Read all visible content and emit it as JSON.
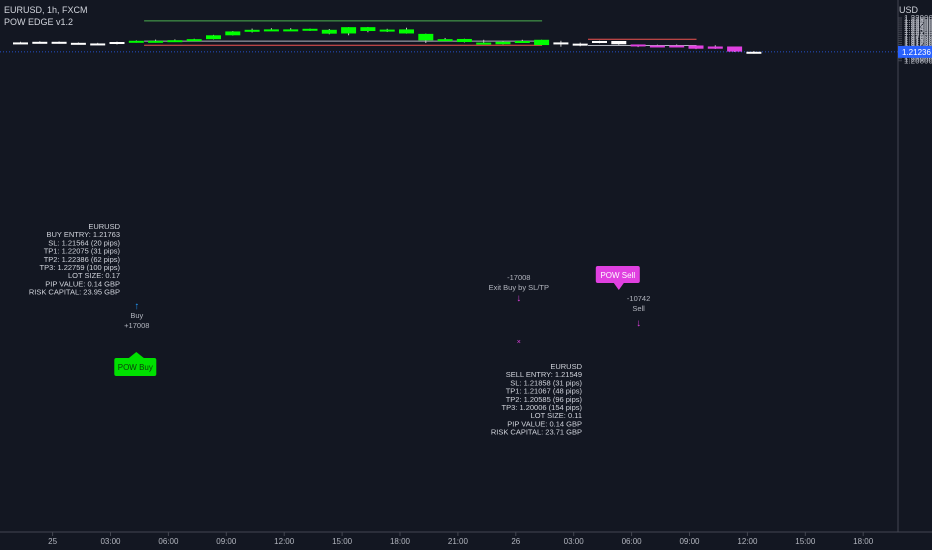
{
  "header": {
    "symbol_line": "EURUSD, 1h, FXCM",
    "indicator_name": "POW EDGE v1.2",
    "currency": "USD"
  },
  "colors": {
    "background": "#131722",
    "bull": "#00ff00",
    "bear_pre_sell": "#ffffff",
    "bear_post_sell": "#e040e0",
    "sell_zone_bull": "#ffffff",
    "target_line": "#4caf50",
    "stop_line": "#ef5350",
    "entry_line": "#b2b5be",
    "current_price": "#2962ff",
    "buy_label": "#00e000",
    "sell_label": "#e040e0"
  },
  "chart_data": {
    "type": "candlestick",
    "symbol": "EURUSD",
    "timeframe": "1h",
    "price_axis": {
      "ylim": [
        1.2077,
        1.2294
      ],
      "ticks": [
        "1.22900",
        "1.22800",
        "1.22700",
        "1.22600",
        "1.22500",
        "1.22400",
        "1.22300",
        "1.22200",
        "1.22100",
        "1.22000",
        "1.21900",
        "1.21800",
        "1.21700",
        "1.21600",
        "1.21500",
        "1.21400",
        "1.21300",
        "1.21200",
        "1.21100",
        "1.21000",
        "1.20900",
        "1.20800"
      ],
      "current_price_label": "1.21236"
    },
    "time_axis": {
      "ticks": [
        {
          "label": "25",
          "bar": 2.5
        },
        {
          "label": "03:00",
          "bar": 5.5
        },
        {
          "label": "06:00",
          "bar": 8.5
        },
        {
          "label": "09:00",
          "bar": 11.5
        },
        {
          "label": "12:00",
          "bar": 14.5
        },
        {
          "label": "15:00",
          "bar": 17.5
        },
        {
          "label": "18:00",
          "bar": 20.5
        },
        {
          "label": "21:00",
          "bar": 23.5
        },
        {
          "label": "26",
          "bar": 26.5
        },
        {
          "label": "03:00",
          "bar": 29.5
        },
        {
          "label": "06:00",
          "bar": 32.5
        },
        {
          "label": "09:00",
          "bar": 35.5
        },
        {
          "label": "12:00",
          "bar": 38.5
        },
        {
          "label": "15:00",
          "bar": 41.5
        },
        {
          "label": "18:00",
          "bar": 44.5
        }
      ]
    },
    "candles": [
      {
        "o": 1.2167,
        "h": 1.2173,
        "l": 1.2163,
        "c": 1.217,
        "color": "bear_pre_sell"
      },
      {
        "o": 1.217,
        "h": 1.2176,
        "l": 1.2165,
        "c": 1.2173,
        "color": "bear_pre_sell"
      },
      {
        "o": 1.2173,
        "h": 1.2175,
        "l": 1.2164,
        "c": 1.2167,
        "color": "bear_pre_sell"
      },
      {
        "o": 1.2168,
        "h": 1.217,
        "l": 1.2162,
        "c": 1.2163,
        "color": "bear_pre_sell"
      },
      {
        "o": 1.2165,
        "h": 1.2168,
        "l": 1.216,
        "c": 1.2162,
        "color": "bear_pre_sell"
      },
      {
        "o": 1.2163,
        "h": 1.2174,
        "l": 1.216,
        "c": 1.2172,
        "color": "bear_pre_sell"
      },
      {
        "o": 1.2172,
        "h": 1.218,
        "l": 1.2169,
        "c": 1.2178,
        "color": "bull"
      },
      {
        "o": 1.2176,
        "h": 1.2184,
        "l": 1.2169,
        "c": 1.2178,
        "color": "bull"
      },
      {
        "o": 1.2177,
        "h": 1.2185,
        "l": 1.2174,
        "c": 1.2181,
        "color": "bull"
      },
      {
        "o": 1.218,
        "h": 1.2188,
        "l": 1.2177,
        "c": 1.2186,
        "color": "bull"
      },
      {
        "o": 1.2186,
        "h": 1.2207,
        "l": 1.2185,
        "c": 1.2205,
        "color": "bull"
      },
      {
        "o": 1.2205,
        "h": 1.2226,
        "l": 1.2204,
        "c": 1.2224,
        "color": "bull"
      },
      {
        "o": 1.2223,
        "h": 1.2238,
        "l": 1.2219,
        "c": 1.2232,
        "color": "bull"
      },
      {
        "o": 1.2233,
        "h": 1.224,
        "l": 1.2227,
        "c": 1.2234,
        "color": "bull"
      },
      {
        "o": 1.2234,
        "h": 1.224,
        "l": 1.2229,
        "c": 1.2233,
        "color": "bull"
      },
      {
        "o": 1.2235,
        "h": 1.2238,
        "l": 1.2227,
        "c": 1.2237,
        "color": "bull"
      },
      {
        "o": 1.2213,
        "h": 1.2236,
        "l": 1.221,
        "c": 1.2232,
        "color": "bull"
      },
      {
        "o": 1.2214,
        "h": 1.2245,
        "l": 1.2205,
        "c": 1.2245,
        "color": "bull"
      },
      {
        "o": 1.2245,
        "h": 1.2246,
        "l": 1.222,
        "c": 1.2226,
        "color": "bull"
      },
      {
        "o": 1.2226,
        "h": 1.2237,
        "l": 1.2221,
        "c": 1.2233,
        "color": "bull"
      },
      {
        "o": 1.2214,
        "h": 1.2242,
        "l": 1.2213,
        "c": 1.2234,
        "color": "bull"
      },
      {
        "o": 1.2212,
        "h": 1.2213,
        "l": 1.2167,
        "c": 1.218,
        "color": "bull"
      },
      {
        "o": 1.218,
        "h": 1.2192,
        "l": 1.2177,
        "c": 1.2186,
        "color": "bull"
      },
      {
        "o": 1.2172,
        "h": 1.2188,
        "l": 1.217,
        "c": 1.2187,
        "color": "bull"
      },
      {
        "o": 1.2165,
        "h": 1.2183,
        "l": 1.2162,
        "c": 1.2169,
        "color": "bull"
      },
      {
        "o": 1.2173,
        "h": 1.2176,
        "l": 1.216,
        "c": 1.2161,
        "color": "bull"
      },
      {
        "o": 1.2177,
        "h": 1.2183,
        "l": 1.2168,
        "c": 1.2172,
        "color": "bull"
      },
      {
        "o": 1.2183,
        "h": 1.2183,
        "l": 1.2157,
        "c": 1.2157,
        "color": "bull"
      },
      {
        "o": 1.2167,
        "h": 1.2178,
        "l": 1.2149,
        "c": 1.217,
        "color": "bear_pre_sell"
      },
      {
        "o": 1.2161,
        "h": 1.2169,
        "l": 1.2151,
        "c": 1.2164,
        "color": "bear_pre_sell"
      },
      {
        "o": 1.2168,
        "h": 1.2178,
        "l": 1.2166,
        "c": 1.2177,
        "color": "sell_zone_bull"
      },
      {
        "o": 1.2177,
        "h": 1.2177,
        "l": 1.2158,
        "c": 1.2161,
        "color": "sell_zone_bull"
      },
      {
        "o": 1.216,
        "h": 1.216,
        "l": 1.2147,
        "c": 1.2155,
        "color": "bear_post_sell"
      },
      {
        "o": 1.2155,
        "h": 1.2159,
        "l": 1.2149,
        "c": 1.2154,
        "color": "bear_post_sell"
      },
      {
        "o": 1.2155,
        "h": 1.216,
        "l": 1.2148,
        "c": 1.2154,
        "color": "bear_post_sell"
      },
      {
        "o": 1.2155,
        "h": 1.2155,
        "l": 1.2137,
        "c": 1.2139,
        "color": "bear_post_sell"
      },
      {
        "o": 1.215,
        "h": 1.2156,
        "l": 1.2138,
        "c": 1.2139,
        "color": "bear_post_sell"
      },
      {
        "o": 1.215,
        "h": 1.215,
        "l": 1.2123,
        "c": 1.2125,
        "color": "bear_post_sell"
      },
      {
        "o": 1.2123,
        "h": 1.2128,
        "l": 1.2115,
        "c": 1.2124,
        "color": "bear_pre_sell"
      }
    ],
    "current_price": 1.21236,
    "horizontal_lines": [
      {
        "name": "buy-tp3-line",
        "price": 1.22759,
        "from_bar": 7,
        "to_bar": 27,
        "color": "target_line"
      },
      {
        "name": "buy-entry-line",
        "price": 1.21763,
        "from_bar": 7,
        "to_bar": 27,
        "color": "entry_line"
      },
      {
        "name": "buy-sl-line",
        "price": 1.21564,
        "from_bar": 7,
        "to_bar": 27,
        "color": "stop_line"
      },
      {
        "name": "sell-sl-line",
        "price": 1.21858,
        "from_bar": 30,
        "to_bar": 35,
        "color": "stop_line"
      },
      {
        "name": "sell-entry-line",
        "price": 1.21549,
        "from_bar": 30,
        "to_bar": 35,
        "color": "entry_line"
      }
    ],
    "buy_signal": {
      "label": "POW Buy",
      "trade_id": "+17008",
      "action": "Buy",
      "bar": 6,
      "info_block": [
        "EURUSD",
        "BUY ENTRY: 1.21763",
        "SL: 1.21564 (20 pips)",
        "TP1: 1.22075 (31 pips)",
        "TP2: 1.22386 (62 pips)",
        "TP3: 1.22759 (100 pips)",
        "LOT SIZE: 0.17",
        "PIP VALUE: 0.14 GBP",
        "RISK CAPITAL: 23.95 GBP"
      ]
    },
    "exit_signal": {
      "trade_id": "-17008",
      "label": "Exit Buy by SL/TP",
      "bar": 26
    },
    "sell_signal": {
      "label": "POW Sell",
      "trade_id": "-10742",
      "action": "Sell",
      "bar": 31,
      "info_block": [
        "EURUSD",
        "SELL ENTRY: 1.21549",
        "SL: 1.21858 (31 pips)",
        "TP1: 1.21067 (48 pips)",
        "TP2: 1.20585 (96 pips)",
        "TP3: 1.20006 (154 pips)",
        "LOT SIZE: 0.11",
        "PIP VALUE: 0.14 GBP",
        "RISK CAPITAL: 23.71 GBP"
      ]
    }
  }
}
